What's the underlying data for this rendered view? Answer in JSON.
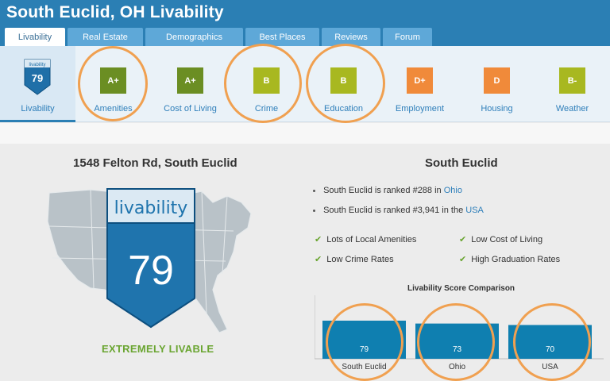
{
  "header": {
    "title": "South Euclid, OH Livability"
  },
  "tabs": [
    "Livability",
    "Real Estate",
    "Demographics",
    "Best Places",
    "Reviews",
    "Forum"
  ],
  "grades": [
    {
      "label": "Livability",
      "value": "79",
      "shield_text": "livability"
    },
    {
      "label": "Amenities",
      "grade": "A+",
      "color": "#6b8e23"
    },
    {
      "label": "Cost of Living",
      "grade": "A+",
      "color": "#6b8e23"
    },
    {
      "label": "Crime",
      "grade": "B",
      "color": "#a8b820"
    },
    {
      "label": "Education",
      "grade": "B",
      "color": "#a8b820"
    },
    {
      "label": "Employment",
      "grade": "D+",
      "color": "#f08a3a"
    },
    {
      "label": "Housing",
      "grade": "D",
      "color": "#f08a3a"
    },
    {
      "label": "Weather",
      "grade": "B-",
      "color": "#a8b820"
    }
  ],
  "left": {
    "address": "1548 Felton Rd, South Euclid",
    "shield_label": "livability",
    "score": "79",
    "rating": "EXTREMELY LIVABLE"
  },
  "right": {
    "city": "South Euclid",
    "rank1_prefix": "South Euclid is ranked #288 in",
    "rank1_link": "Ohio",
    "rank2_prefix": "South Euclid is ranked #3,941 in the",
    "rank2_link": "USA",
    "checks": [
      "Lots of Local Amenities",
      "Low Cost of Living",
      "Low Crime Rates",
      "High Graduation Rates"
    ]
  },
  "chart_data": {
    "type": "bar",
    "title": "Livability Score Comparison",
    "categories": [
      "South Euclid",
      "Ohio",
      "USA"
    ],
    "values": [
      79,
      73,
      70
    ],
    "ylim": [
      0,
      100
    ],
    "bar_color": "#0f7fb0"
  },
  "colors": {
    "header": "#2b7fb4",
    "link": "#2f7fba",
    "green": "#6aa531",
    "highlight_circle": "#f0a050"
  }
}
